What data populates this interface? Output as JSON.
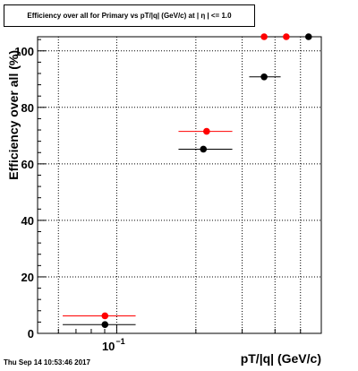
{
  "title": "Efficiency over all for Primary vs pT/|q| (GeV/c) at | η | <= 1.0",
  "timestamp": "Thu Sep 14 10:53:46 2017",
  "chart_data": {
    "type": "scatter",
    "title": "Efficiency over all for Primary vs pT/|q| (GeV/c) at | η | <= 1.0",
    "xlabel": "pT/|q| (GeV/c)",
    "ylabel": "Efficiency over all (%)",
    "x_scale": "log",
    "xlim": [
      0.05,
      0.6
    ],
    "ylim": [
      0,
      105
    ],
    "grid": true,
    "y_ticks": [
      "0",
      "20",
      "40",
      "60",
      "80",
      "100"
    ],
    "x_tick_label": {
      "base": "10",
      "exponent": "−1",
      "value": 0.1
    },
    "series": [
      {
        "color": "#000000",
        "points": [
          {
            "x": 0.0902,
            "xlo": 0.0623,
            "xhi": 0.118,
            "y": 3.1
          },
          {
            "x": 0.2136,
            "xlo": 0.1718,
            "xhi": 0.2752,
            "y": 65.2
          },
          {
            "x": 0.3636,
            "xlo": 0.3191,
            "xhi": 0.4202,
            "y": 90.8
          },
          {
            "x": 0.5367,
            "xlo": 0.5367,
            "xhi": 0.5367,
            "y": 105
          }
        ]
      },
      {
        "color": "#ff0000",
        "points": [
          {
            "x": 0.0902,
            "xlo": 0.0623,
            "xhi": 0.118,
            "y": 6.2
          },
          {
            "x": 0.2197,
            "xlo": 0.1718,
            "xhi": 0.2752,
            "y": 71.5
          },
          {
            "x": 0.3636,
            "xlo": 0.3636,
            "xhi": 0.3636,
            "y": 105
          },
          {
            "x": 0.4415,
            "xlo": 0.4415,
            "xhi": 0.4415,
            "y": 105
          }
        ]
      }
    ]
  }
}
